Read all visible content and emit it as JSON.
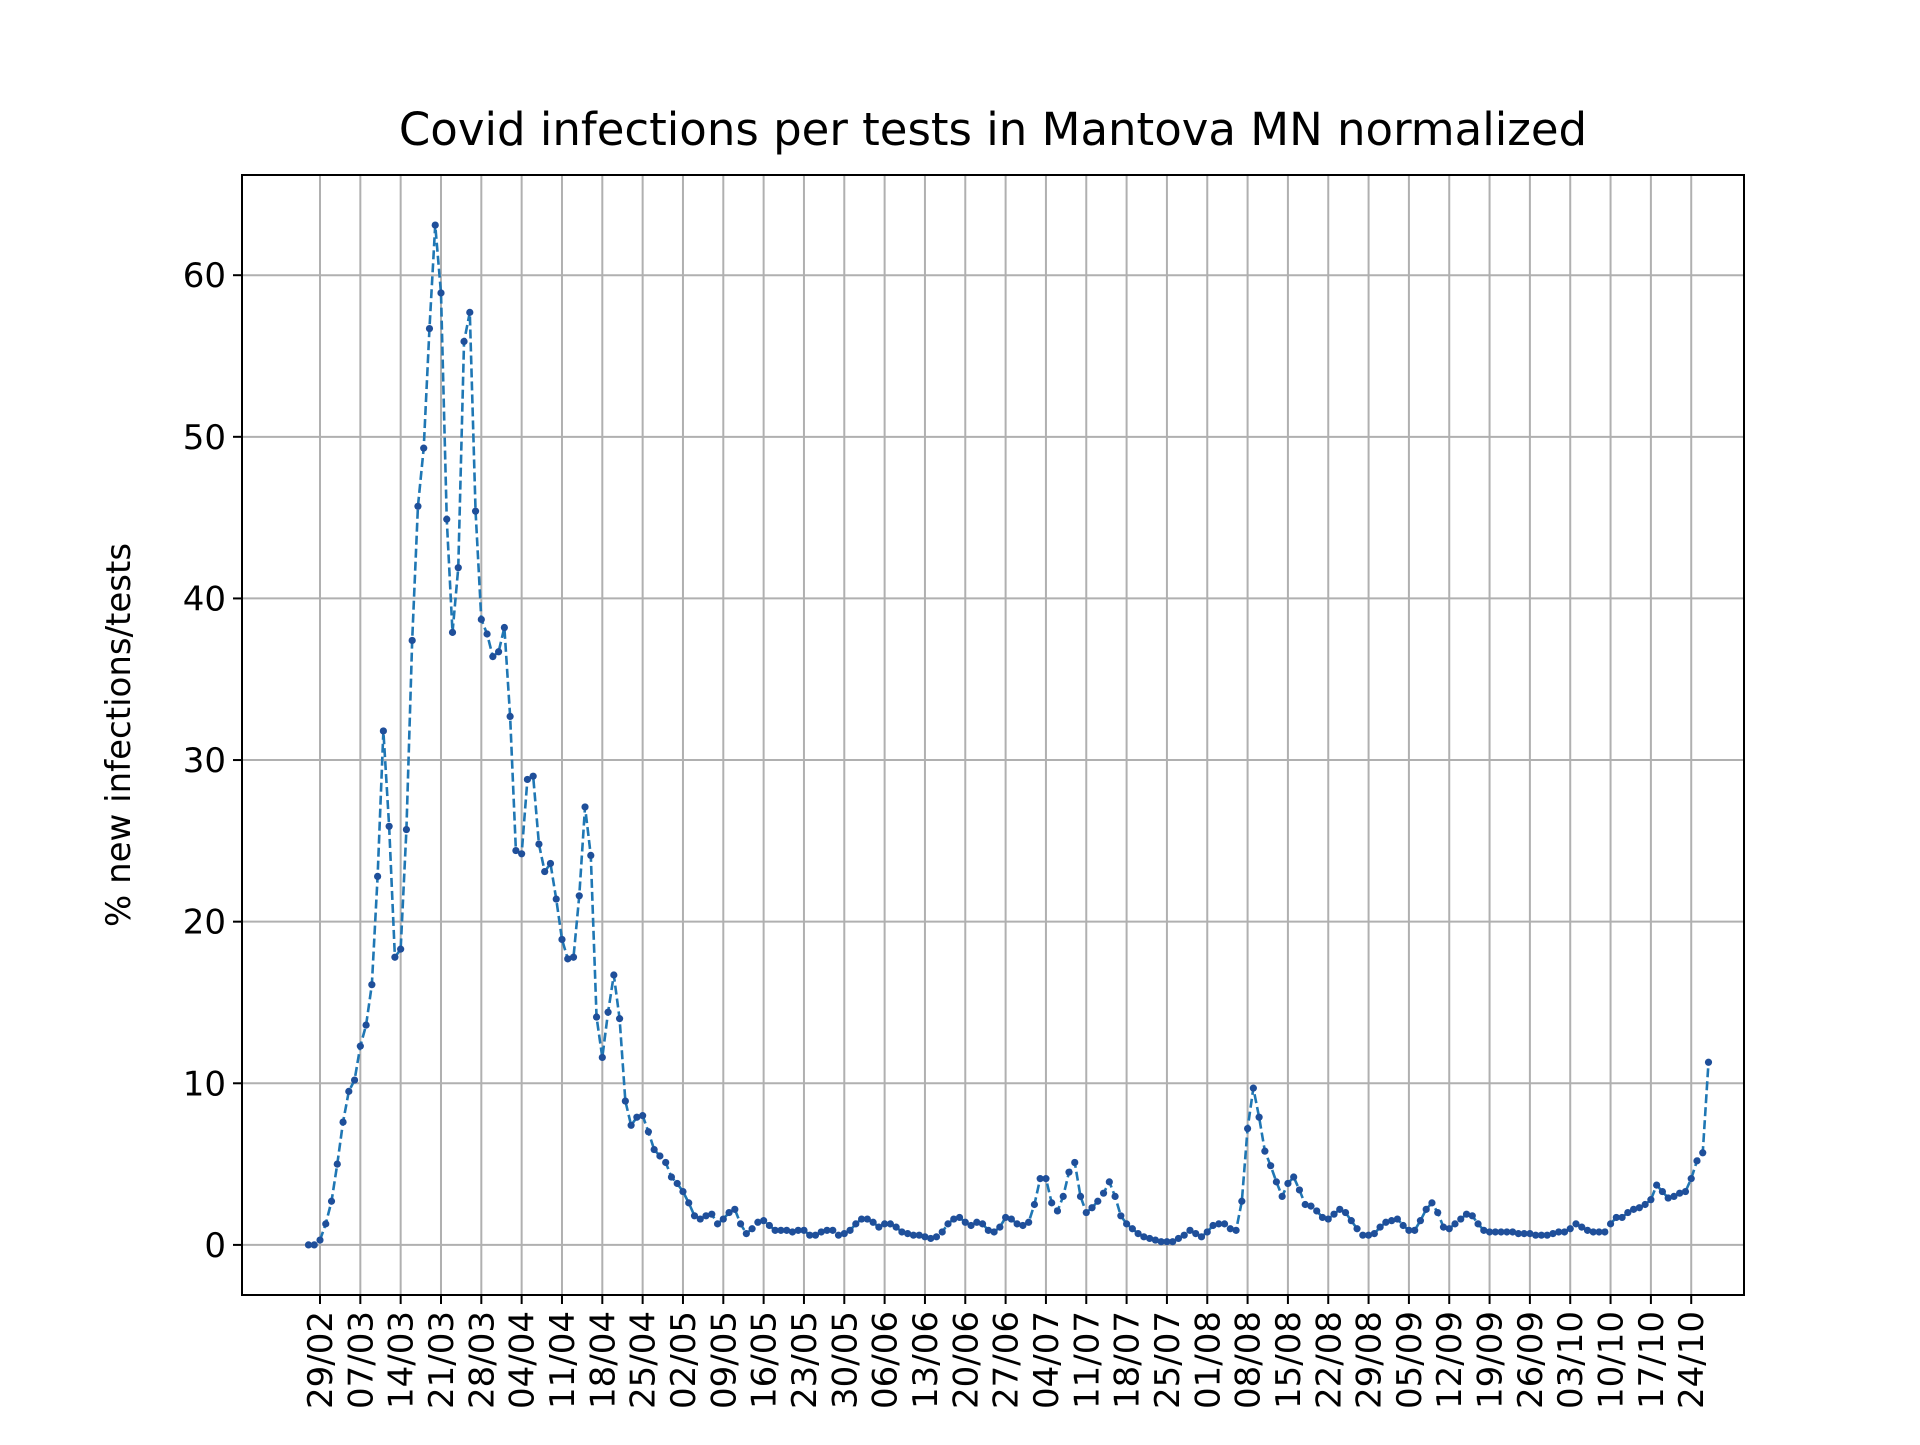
{
  "chart_data": {
    "type": "line",
    "title": "Covid infections per tests in Mantova MN normalized",
    "xlabel": "",
    "ylabel": "% new infections/tests",
    "ylim": [
      -3.1,
      66.2
    ],
    "yticks": [
      0,
      10,
      20,
      30,
      40,
      50,
      60
    ],
    "grid": true,
    "legend": "none",
    "line_style": "dashed",
    "marker": "dot",
    "colors": {
      "line": "#1f77b4",
      "marker": "#1f4f9a",
      "grid": "#b0b0b0"
    },
    "x_ticks": [
      "29/02",
      "07/03",
      "14/03",
      "21/03",
      "28/03",
      "04/04",
      "11/04",
      "18/04",
      "25/04",
      "02/05",
      "09/05",
      "16/05",
      "23/05",
      "30/05",
      "06/06",
      "13/06",
      "20/06",
      "27/06",
      "04/07",
      "11/07",
      "18/07",
      "25/07",
      "01/08",
      "08/08",
      "15/08",
      "22/08",
      "29/08",
      "05/09",
      "12/09",
      "19/09",
      "26/09",
      "03/10",
      "10/10",
      "17/10",
      "24/10"
    ],
    "series": [
      {
        "start_date": "27/02",
        "values": [
          0,
          0,
          0.3,
          1.3,
          2.7,
          5.0,
          7.6,
          9.5,
          10.2,
          12.3,
          13.6,
          16.1,
          22.8,
          31.8,
          25.9,
          17.8,
          18.3,
          25.7,
          37.4,
          45.7,
          49.3,
          56.7,
          63.1,
          58.9,
          44.9,
          37.9,
          41.9,
          55.9,
          57.7,
          45.4,
          38.7,
          37.8,
          36.4,
          36.7,
          38.2,
          32.7,
          24.4,
          24.2,
          28.8,
          29.0,
          24.8,
          23.1,
          23.6,
          21.4,
          18.9,
          17.7,
          17.8,
          21.6,
          27.1,
          24.1,
          14.1,
          11.6,
          14.4,
          16.7,
          14.0,
          8.9,
          7.4,
          7.9,
          8.0,
          7.0,
          5.9,
          5.5,
          5.1,
          4.2,
          3.8,
          3.3,
          2.6,
          1.8,
          1.6,
          1.8,
          1.9,
          1.3,
          1.6,
          2.0,
          2.2,
          1.3,
          0.7,
          1.0,
          1.4,
          1.5,
          1.2,
          0.9,
          0.9,
          0.9,
          0.8,
          0.9,
          0.9,
          0.6,
          0.6,
          0.8,
          0.9,
          0.9,
          0.6,
          0.7,
          0.9,
          1.3,
          1.6,
          1.6,
          1.4,
          1.1,
          1.3,
          1.3,
          1.1,
          0.8,
          0.7,
          0.6,
          0.6,
          0.5,
          0.4,
          0.5,
          0.8,
          1.3,
          1.6,
          1.7,
          1.4,
          1.2,
          1.4,
          1.3,
          0.9,
          0.8,
          1.1,
          1.7,
          1.6,
          1.3,
          1.2,
          1.4,
          2.5,
          4.1,
          4.1,
          2.6,
          2.1,
          3.0,
          4.5,
          5.1,
          3.0,
          2.0,
          2.3,
          2.7,
          3.2,
          3.9,
          3.0,
          1.8,
          1.3,
          1.0,
          0.7,
          0.5,
          0.4,
          0.3,
          0.2,
          0.2,
          0.2,
          0.4,
          0.6,
          0.9,
          0.7,
          0.5,
          0.8,
          1.2,
          1.3,
          1.3,
          1.0,
          0.9,
          2.7,
          7.2,
          9.7,
          7.9,
          5.8,
          4.9,
          3.9,
          3.0,
          3.8,
          4.2,
          3.4,
          2.5,
          2.4,
          2.1,
          1.7,
          1.6,
          1.9,
          2.2,
          2.0,
          1.5,
          1.0,
          0.6,
          0.6,
          0.7,
          1.1,
          1.4,
          1.5,
          1.6,
          1.2,
          0.9,
          0.9,
          1.5,
          2.2,
          2.6,
          2.0,
          1.1,
          1.0,
          1.3,
          1.6,
          1.9,
          1.8,
          1.3,
          0.9,
          0.8,
          0.8,
          0.8,
          0.8,
          0.8,
          0.7,
          0.7,
          0.7,
          0.6,
          0.6,
          0.6,
          0.7,
          0.8,
          0.8,
          1.0,
          1.3,
          1.1,
          0.9,
          0.8,
          0.8,
          0.8,
          1.3,
          1.7,
          1.7,
          2.0,
          2.2,
          2.3,
          2.5,
          2.8,
          3.7,
          3.3,
          2.9,
          3.0,
          3.2,
          3.3,
          4.1,
          5.2,
          5.7,
          11.3
        ]
      }
    ]
  }
}
